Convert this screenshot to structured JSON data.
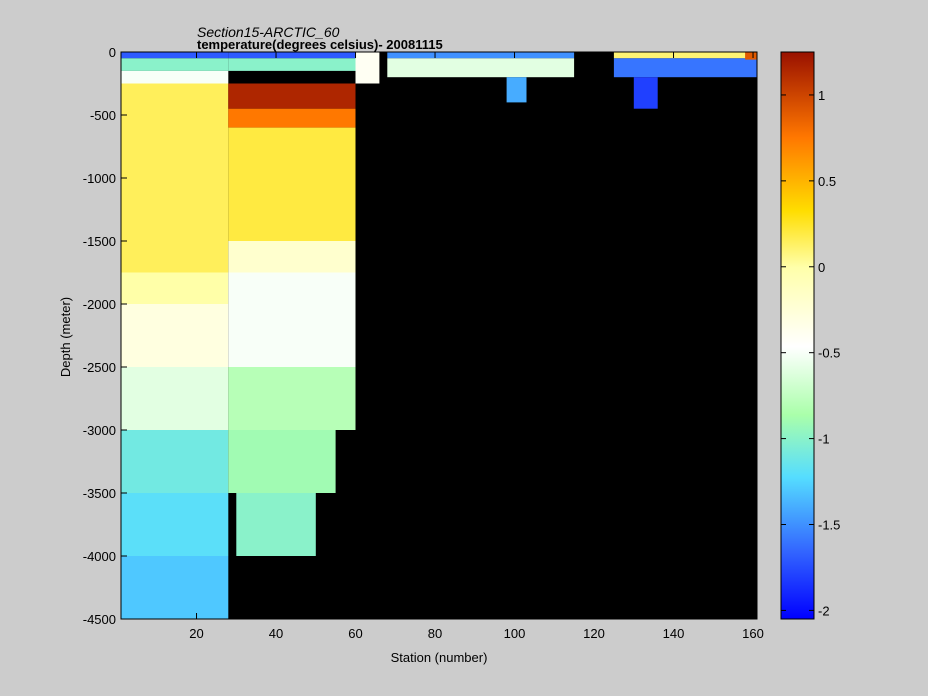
{
  "chart_data": {
    "type": "heatmap",
    "title": "Section15-ARCTIC_60",
    "subtitle": "temperature(degrees  celsius)- 20081115",
    "xlabel": "Station (number)",
    "ylabel": "Depth (meter)",
    "xlim": [
      1,
      161
    ],
    "ylim": [
      -4500,
      0
    ],
    "x_ticks": [
      20,
      40,
      60,
      80,
      100,
      120,
      140,
      160
    ],
    "y_ticks": [
      0,
      -500,
      -1000,
      -1500,
      -2000,
      -2500,
      -3000,
      -3500,
      -4000,
      -4500
    ],
    "colorbar": {
      "range": [
        -2.05,
        1.25
      ],
      "ticks": [
        1,
        0.5,
        0,
        -0.5,
        -1,
        -1.5,
        -2
      ],
      "colormap": "jet-like (blue to dark red)"
    },
    "missing_color": "#000000",
    "regions": [
      {
        "stations": [
          1,
          28
        ],
        "depth": [
          -50,
          0
        ],
        "value": -1.7
      },
      {
        "stations": [
          1,
          28
        ],
        "depth": [
          -150,
          -50
        ],
        "value": -1.0
      },
      {
        "stations": [
          1,
          28
        ],
        "depth": [
          -250,
          -150
        ],
        "value": -0.5
      },
      {
        "stations": [
          1,
          28
        ],
        "depth": [
          -1750,
          -250
        ],
        "value": 0.15
      },
      {
        "stations": [
          1,
          28
        ],
        "depth": [
          -2000,
          -1750
        ],
        "value": 0.0
      },
      {
        "stations": [
          1,
          28
        ],
        "depth": [
          -2500,
          -2000
        ],
        "value": -0.3
      },
      {
        "stations": [
          1,
          28
        ],
        "depth": [
          -3000,
          -2500
        ],
        "value": -0.6
      },
      {
        "stations": [
          1,
          28
        ],
        "depth": [
          -3500,
          -3000
        ],
        "value": -1.1
      },
      {
        "stations": [
          1,
          28
        ],
        "depth": [
          -4000,
          -3500
        ],
        "value": -1.2
      },
      {
        "stations": [
          1,
          28
        ],
        "depth": [
          -4500,
          -4000
        ],
        "value": -1.3
      },
      {
        "stations": [
          28,
          60
        ],
        "depth": [
          -50,
          0
        ],
        "value": -1.7
      },
      {
        "stations": [
          28,
          60
        ],
        "depth": [
          -150,
          -50
        ],
        "value": -1.0
      },
      {
        "stations": [
          28,
          60
        ],
        "depth": [
          -450,
          -250
        ],
        "value": 1.15
      },
      {
        "stations": [
          28,
          60
        ],
        "depth": [
          -600,
          -450
        ],
        "value": 0.75
      },
      {
        "stations": [
          28,
          60
        ],
        "depth": [
          -1500,
          -600
        ],
        "value": 0.2
      },
      {
        "stations": [
          28,
          60
        ],
        "depth": [
          -1750,
          -1500
        ],
        "value": -0.2
      },
      {
        "stations": [
          28,
          60
        ],
        "depth": [
          -2500,
          -1750
        ],
        "value": -0.5
      },
      {
        "stations": [
          28,
          60
        ],
        "depth": [
          -3000,
          -2500
        ],
        "value": -0.8
      },
      {
        "stations": [
          28,
          55
        ],
        "depth": [
          -3500,
          -3000
        ],
        "value": -0.9
      },
      {
        "stations": [
          30,
          50
        ],
        "depth": [
          -4000,
          -3500
        ],
        "value": -1.0
      },
      {
        "stations": [
          60,
          66
        ],
        "depth": [
          -250,
          0
        ],
        "value": -0.4
      },
      {
        "stations": [
          68,
          115
        ],
        "depth": [
          -50,
          0
        ],
        "value": -1.5
      },
      {
        "stations": [
          68,
          115
        ],
        "depth": [
          -200,
          -50
        ],
        "value": -0.6
      },
      {
        "stations": [
          98,
          103
        ],
        "depth": [
          -400,
          -200
        ],
        "value": -1.4
      },
      {
        "stations": [
          125,
          161
        ],
        "depth": [
          -50,
          0
        ],
        "value": 0.1
      },
      {
        "stations": [
          125,
          161
        ],
        "depth": [
          -200,
          -50
        ],
        "value": -1.6
      },
      {
        "stations": [
          130,
          136
        ],
        "depth": [
          -450,
          -200
        ],
        "value": -1.8
      },
      {
        "stations": [
          158,
          161
        ],
        "depth": [
          -60,
          0
        ],
        "value": 0.9
      }
    ]
  }
}
